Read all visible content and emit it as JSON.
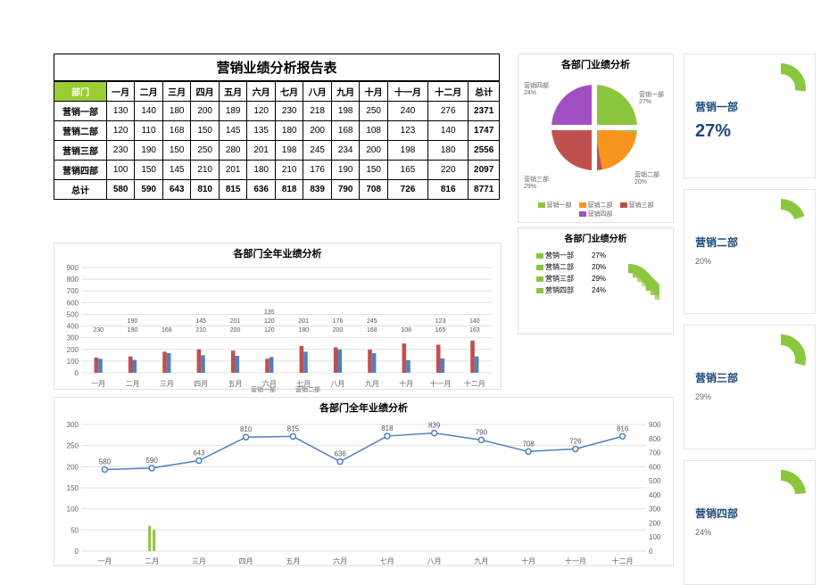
{
  "table": {
    "title": "营销业绩分析报告表",
    "dept_header": "部门",
    "months": [
      "一月",
      "二月",
      "三月",
      "四月",
      "五月",
      "六月",
      "七月",
      "八月",
      "九月",
      "十月",
      "十一月",
      "十二月"
    ],
    "total_header": "总计",
    "rows": [
      {
        "name": "营销一部",
        "values": [
          130,
          140,
          180,
          200,
          189,
          120,
          230,
          218,
          198,
          250,
          240,
          276
        ],
        "total": 2371
      },
      {
        "name": "营销二部",
        "values": [
          120,
          110,
          168,
          150,
          145,
          135,
          180,
          200,
          168,
          108,
          123,
          140
        ],
        "total": 1747
      },
      {
        "name": "营销三部",
        "values": [
          230,
          190,
          150,
          250,
          280,
          201,
          198,
          245,
          234,
          200,
          198,
          180
        ],
        "total": 2556
      },
      {
        "name": "营销四部",
        "values": [
          100,
          150,
          145,
          210,
          201,
          180,
          210,
          176,
          190,
          150,
          165,
          220
        ],
        "total": 2097
      }
    ],
    "total_row": {
      "name": "总计",
      "values": [
        580,
        590,
        643,
        810,
        815,
        636,
        818,
        839,
        790,
        708,
        726,
        816
      ],
      "total": 8771
    },
    "dept_bg": "#8cc63f"
  },
  "pie": {
    "title": "各部门业绩分析",
    "slices": [
      {
        "name": "营销一部",
        "pct": 27,
        "color": "#8cc63f"
      },
      {
        "name": "营销二部",
        "pct": 20,
        "color": "#f7941d"
      },
      {
        "name": "营销三部",
        "pct": 29,
        "color": "#c0504d"
      },
      {
        "name": "营销四部",
        "pct": 24,
        "color": "#a24fc2"
      }
    ],
    "gap": "#ffffff"
  },
  "smallpie": {
    "title": "各部门业绩分析",
    "rows": [
      {
        "name": "营销一部",
        "pct": "27%",
        "color": "#8cc63f"
      },
      {
        "name": "营销二部",
        "pct": "20%",
        "color": "#8cc63f"
      },
      {
        "name": "营销三部",
        "pct": "29%",
        "color": "#8cc63f"
      },
      {
        "name": "营销四部",
        "pct": "24%",
        "color": "#8cc63f"
      }
    ],
    "arc_color": "#8cc63f"
  },
  "cards": [
    {
      "label": "营销一部",
      "pct": "27%",
      "arc_pct": 27,
      "big": true
    },
    {
      "label": "营销二部",
      "pct": "20%",
      "arc_pct": 20,
      "big": false
    },
    {
      "label": "营销三部",
      "pct": "29%",
      "arc_pct": 29,
      "big": false
    },
    {
      "label": "营销四部",
      "pct": "24%",
      "arc_pct": 24,
      "big": false
    }
  ],
  "card_arc_color": "#8cc63f",
  "card_gap": 152,
  "bar": {
    "title": "各部门全年业绩分析",
    "categories": [
      "一月",
      "二月",
      "三月",
      "四月",
      "五月",
      "六月",
      "七月",
      "八月",
      "九月",
      "十月",
      "十一月",
      "十二月"
    ],
    "series": [
      {
        "name": "营销一部",
        "color": "#c0504d",
        "values": [
          130,
          140,
          180,
          200,
          189,
          120,
          230,
          218,
          198,
          250,
          240,
          276
        ]
      },
      {
        "name": "营销二部",
        "color": "#4f81bd",
        "values": [
          120,
          110,
          168,
          150,
          145,
          135,
          180,
          200,
          168,
          108,
          123,
          140
        ]
      }
    ],
    "ylim": [
      0,
      900
    ],
    "ytick_step": 100,
    "label_vals": [
      [
        230
      ],
      [
        190,
        190
      ],
      [
        168
      ],
      [
        210,
        145
      ],
      [
        200,
        201
      ],
      [
        120,
        120,
        135
      ],
      [
        180,
        201
      ],
      [
        200,
        176
      ],
      [
        168,
        245
      ],
      [
        108
      ],
      [
        165,
        123
      ],
      [
        163,
        140
      ]
    ],
    "grid_color": "#e0e0e0",
    "tick_font": 8
  },
  "line": {
    "title": "各部门全年业绩分析",
    "categories": [
      "一月",
      "二月",
      "三月",
      "四月",
      "五月",
      "六月",
      "七月",
      "八月",
      "九月",
      "十月",
      "十一月",
      "十二月"
    ],
    "values": [
      580,
      590,
      643,
      810,
      815,
      636,
      818,
      839,
      790,
      708,
      726,
      816
    ],
    "line_color": "#4f81bd",
    "marker_fill": "#ffffff",
    "ylim_left": [
      0,
      300
    ],
    "ytick_left": 50,
    "ylim_right": [
      0,
      900
    ],
    "ytick_right": 100,
    "grid_color": "#e0e0e0",
    "tick_font": 8,
    "small_bar_color": "#8cc63f"
  }
}
